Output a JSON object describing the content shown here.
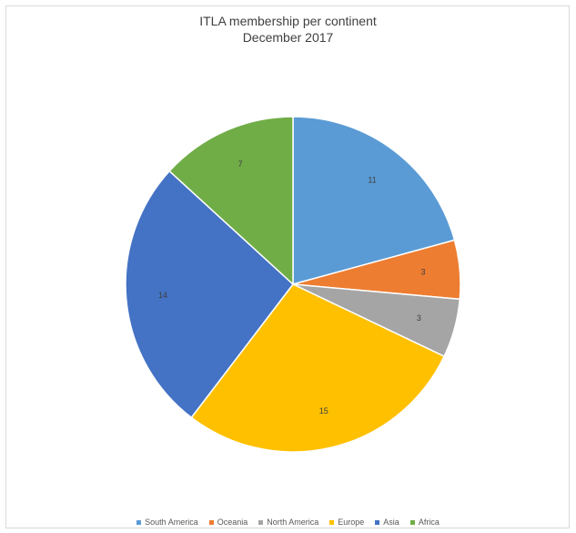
{
  "chart_data": {
    "type": "pie",
    "title": "ITLA membership per continent",
    "subtitle": "December 2017",
    "legend_position": "bottom",
    "slices": [
      {
        "label": "South America",
        "value": 11,
        "color": "#5b9bd5"
      },
      {
        "label": "Oceania",
        "value": 3,
        "color": "#ed7d31"
      },
      {
        "label": "North America",
        "value": 3,
        "color": "#a5a5a5"
      },
      {
        "label": "Europe",
        "value": 15,
        "color": "#ffc000"
      },
      {
        "label": "Asia",
        "value": 14,
        "color": "#4472c4"
      },
      {
        "label": "Africa",
        "value": 7,
        "color": "#70ad47"
      }
    ]
  }
}
